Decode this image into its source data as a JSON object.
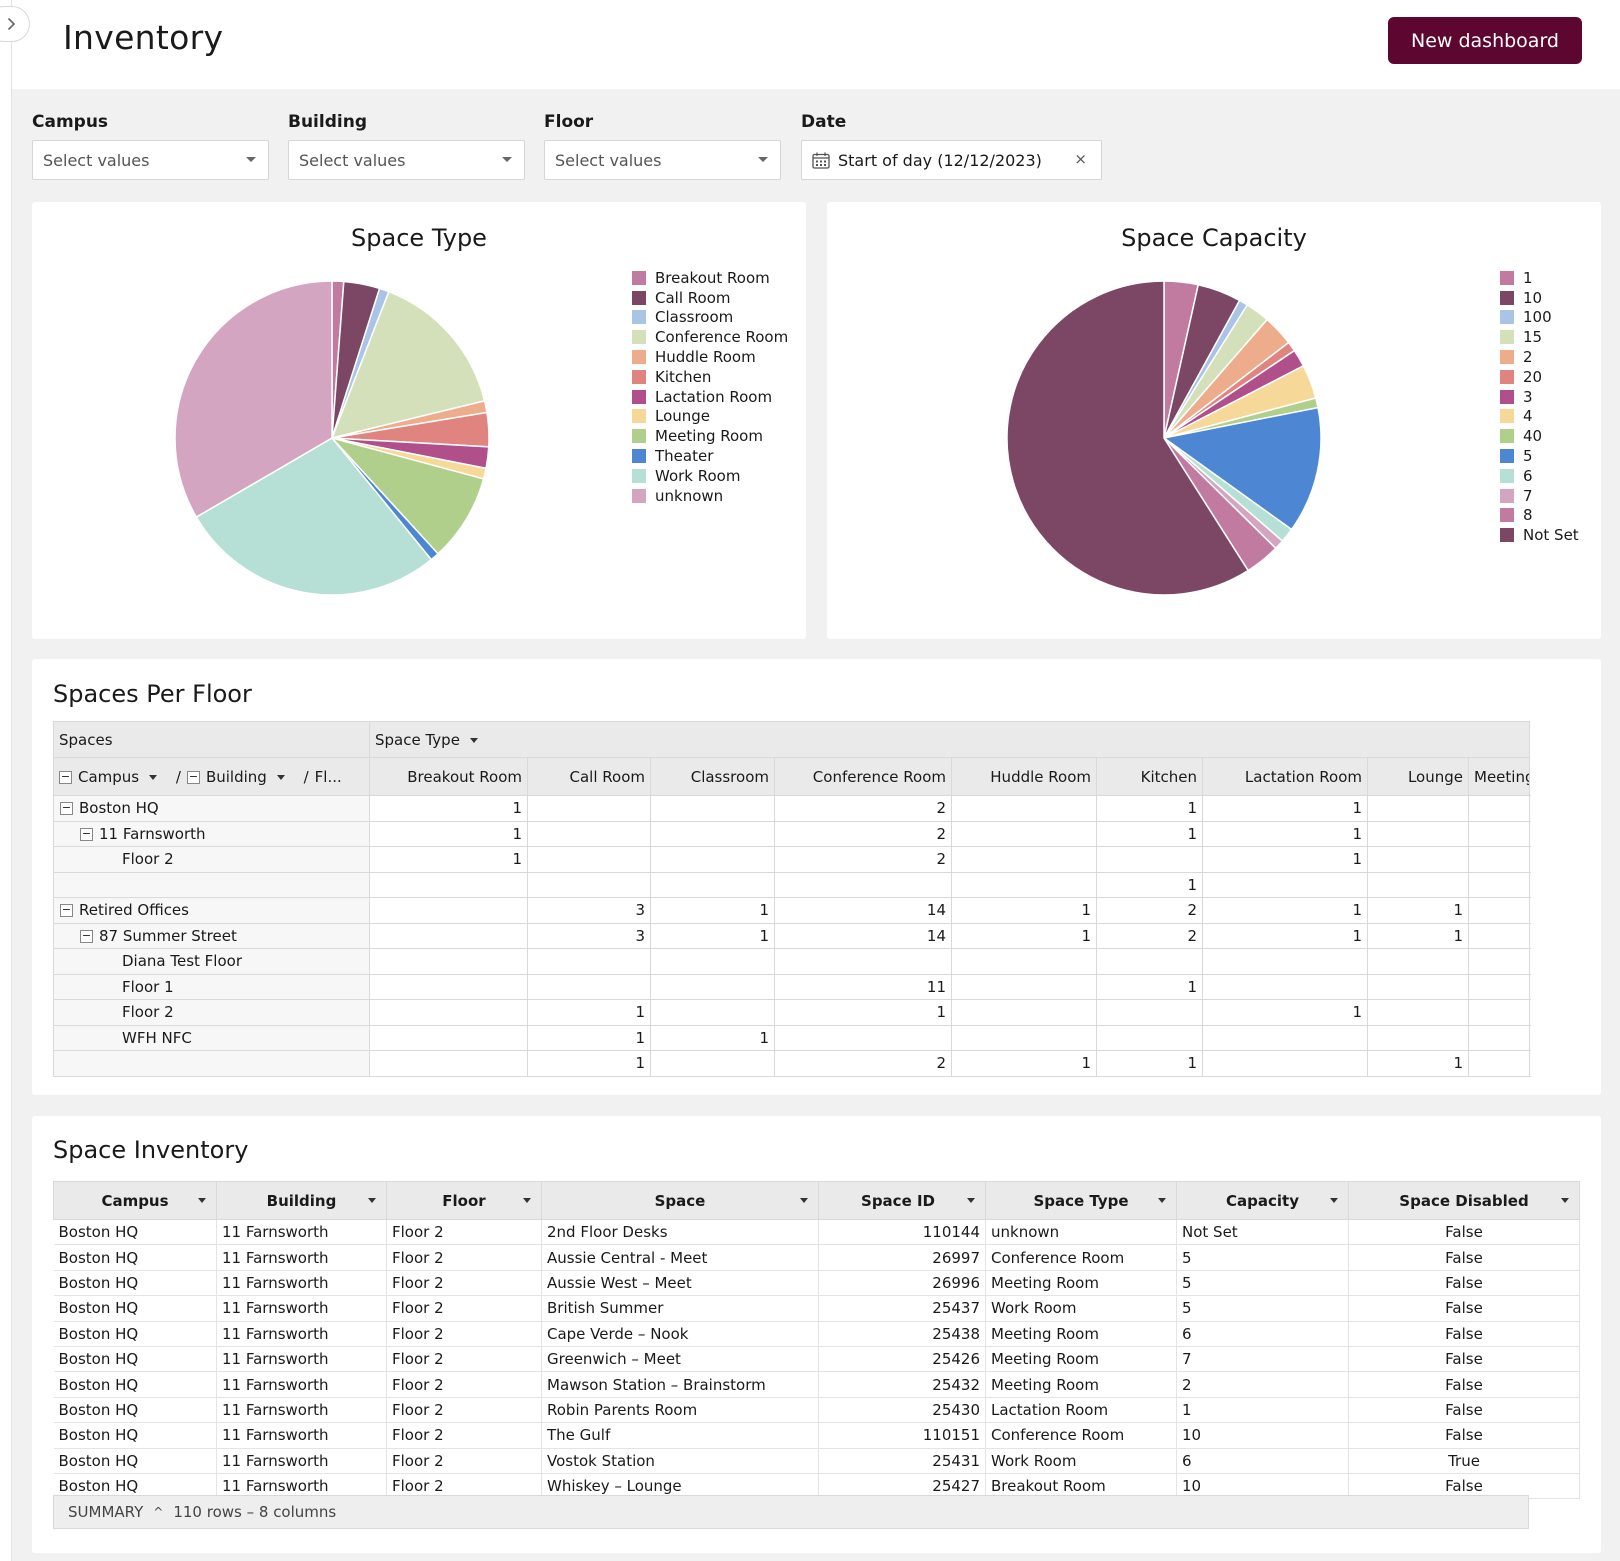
{
  "header": {
    "title": "Inventory",
    "new_dashboard_label": "New dashboard"
  },
  "filters": {
    "campus": {
      "label": "Campus",
      "placeholder": "Select values"
    },
    "building": {
      "label": "Building",
      "placeholder": "Select values"
    },
    "floor": {
      "label": "Floor",
      "placeholder": "Select values"
    },
    "date": {
      "label": "Date",
      "value": "Start of day (12/12/2023)",
      "clear": "×"
    }
  },
  "chart_data": [
    {
      "type": "pie",
      "title": "Space Type",
      "legend_position": "right",
      "labels": [
        "Breakout Room",
        "Call Room",
        "Classroom",
        "Conference Room",
        "Huddle Room",
        "Kitchen",
        "Lactation Room",
        "Lounge",
        "Meeting Room",
        "Theater",
        "Work Room",
        "unknown"
      ],
      "values": [
        1.2,
        3.7,
        1.0,
        15.3,
        1.2,
        3.5,
        2.2,
        1.1,
        9.0,
        0.9,
        27.5,
        33.4
      ],
      "colors": [
        "#c17ba1",
        "#7b4765",
        "#a9c4e6",
        "#d3e0ba",
        "#edac8c",
        "#e08480",
        "#b04f8a",
        "#f6d898",
        "#b0cf8b",
        "#4d86d3",
        "#b6e0d5",
        "#d4a5c1"
      ]
    },
    {
      "type": "pie",
      "title": "Space Capacity",
      "legend_position": "right",
      "labels": [
        "1",
        "10",
        "100",
        "15",
        "2",
        "20",
        "3",
        "4",
        "40",
        "5",
        "6",
        "7",
        "8",
        "Not Set"
      ],
      "values": [
        3.5,
        4.5,
        0.9,
        2.5,
        3.2,
        1.0,
        1.8,
        3.5,
        1.0,
        13.0,
        1.5,
        1.0,
        3.6,
        59.0
      ],
      "colors": [
        "#c17ba1",
        "#7b4765",
        "#a9c4e6",
        "#d3e0ba",
        "#edac8c",
        "#e08480",
        "#b04f8a",
        "#f6d898",
        "#b0cf8b",
        "#4d86d3",
        "#b6e0d5",
        "#d4a5c1",
        "#c17ba1",
        "#7b4765"
      ]
    }
  ],
  "pivot": {
    "title": "Spaces Per Floor",
    "spaces_header": "Spaces",
    "space_type_header": "Space Type",
    "row_headers": {
      "campus": "Campus",
      "sep1": "/",
      "building": "Building",
      "sep2": "/",
      "floor": "Fl..."
    },
    "columns": [
      "Breakout Room",
      "Call Room",
      "Classroom",
      "Conference Room",
      "Huddle Room",
      "Kitchen",
      "Lactation Room",
      "Lounge",
      "Meeting"
    ],
    "rows": [
      {
        "label": "Boston HQ",
        "level": 0,
        "toggle": "−",
        "cells": [
          "1",
          "",
          "",
          "2",
          "",
          "1",
          "1",
          "",
          ""
        ]
      },
      {
        "label": "11 Farnsworth",
        "level": 1,
        "toggle": "−",
        "cells": [
          "1",
          "",
          "",
          "2",
          "",
          "1",
          "1",
          "",
          ""
        ]
      },
      {
        "label": "Floor 2",
        "level": 2,
        "toggle": "",
        "cells": [
          "1",
          "",
          "",
          "2",
          "",
          "",
          "1",
          "",
          ""
        ]
      },
      {
        "label": "",
        "level": 2,
        "toggle": "",
        "cells": [
          "",
          "",
          "",
          "",
          "",
          "1",
          "",
          "",
          ""
        ]
      },
      {
        "label": "Retired Offices",
        "level": 0,
        "toggle": "−",
        "cells": [
          "",
          "3",
          "1",
          "14",
          "1",
          "2",
          "1",
          "1",
          ""
        ]
      },
      {
        "label": "87 Summer Street",
        "level": 1,
        "toggle": "−",
        "cells": [
          "",
          "3",
          "1",
          "14",
          "1",
          "2",
          "1",
          "1",
          ""
        ]
      },
      {
        "label": "Diana Test Floor",
        "level": 2,
        "toggle": "",
        "cells": [
          "",
          "",
          "",
          "",
          "",
          "",
          "",
          "",
          ""
        ]
      },
      {
        "label": "Floor 1",
        "level": 2,
        "toggle": "",
        "cells": [
          "",
          "",
          "",
          "11",
          "",
          "1",
          "",
          "",
          ""
        ]
      },
      {
        "label": "Floor 2",
        "level": 2,
        "toggle": "",
        "cells": [
          "",
          "1",
          "",
          "1",
          "",
          "",
          "1",
          "",
          ""
        ]
      },
      {
        "label": "WFH NFC",
        "level": 2,
        "toggle": "",
        "cells": [
          "",
          "1",
          "1",
          "",
          "",
          "",
          "",
          "",
          ""
        ]
      },
      {
        "label": "",
        "level": 2,
        "toggle": "",
        "cells": [
          "",
          "1",
          "",
          "2",
          "1",
          "1",
          "",
          "1",
          ""
        ]
      }
    ]
  },
  "inventory": {
    "title": "Space Inventory",
    "columns": [
      "Campus",
      "Building",
      "Floor",
      "Space",
      "Space ID",
      "Space Type",
      "Capacity",
      "Space Disabled"
    ],
    "rows": [
      [
        "Boston HQ",
        "11 Farnsworth",
        "Floor 2",
        "2nd Floor Desks",
        "110144",
        "unknown",
        "Not Set",
        "False"
      ],
      [
        "Boston HQ",
        "11 Farnsworth",
        "Floor 2",
        "Aussie Central - Meet",
        "26997",
        "Conference Room",
        "5",
        "False"
      ],
      [
        "Boston HQ",
        "11 Farnsworth",
        "Floor 2",
        "Aussie West – Meet",
        "26996",
        "Meeting Room",
        "5",
        "False"
      ],
      [
        "Boston HQ",
        "11 Farnsworth",
        "Floor 2",
        "British Summer",
        "25437",
        "Work Room",
        "5",
        "False"
      ],
      [
        "Boston HQ",
        "11 Farnsworth",
        "Floor 2",
        "Cape Verde – Nook",
        "25438",
        "Meeting Room",
        "6",
        "False"
      ],
      [
        "Boston HQ",
        "11 Farnsworth",
        "Floor 2",
        "Greenwich – Meet",
        "25426",
        "Meeting Room",
        "7",
        "False"
      ],
      [
        "Boston HQ",
        "11 Farnsworth",
        "Floor 2",
        "Mawson Station – Brainstorm",
        "25432",
        "Meeting Room",
        "2",
        "False"
      ],
      [
        "Boston HQ",
        "11 Farnsworth",
        "Floor 2",
        "Robin Parents Room",
        "25430",
        "Lactation Room",
        "1",
        "False"
      ],
      [
        "Boston HQ",
        "11 Farnsworth",
        "Floor 2",
        "The Gulf",
        "110151",
        "Conference Room",
        "10",
        "False"
      ],
      [
        "Boston HQ",
        "11 Farnsworth",
        "Floor 2",
        "Vostok Station",
        "25431",
        "Work Room",
        "6",
        "True"
      ],
      [
        "Boston HQ",
        "11 Farnsworth",
        "Floor 2",
        "Whiskey – Lounge",
        "25427",
        "Breakout Room",
        "10",
        "False"
      ]
    ],
    "summary_label": "SUMMARY",
    "summary_caret": "^",
    "summary_text": "110 rows – 8 columns"
  }
}
